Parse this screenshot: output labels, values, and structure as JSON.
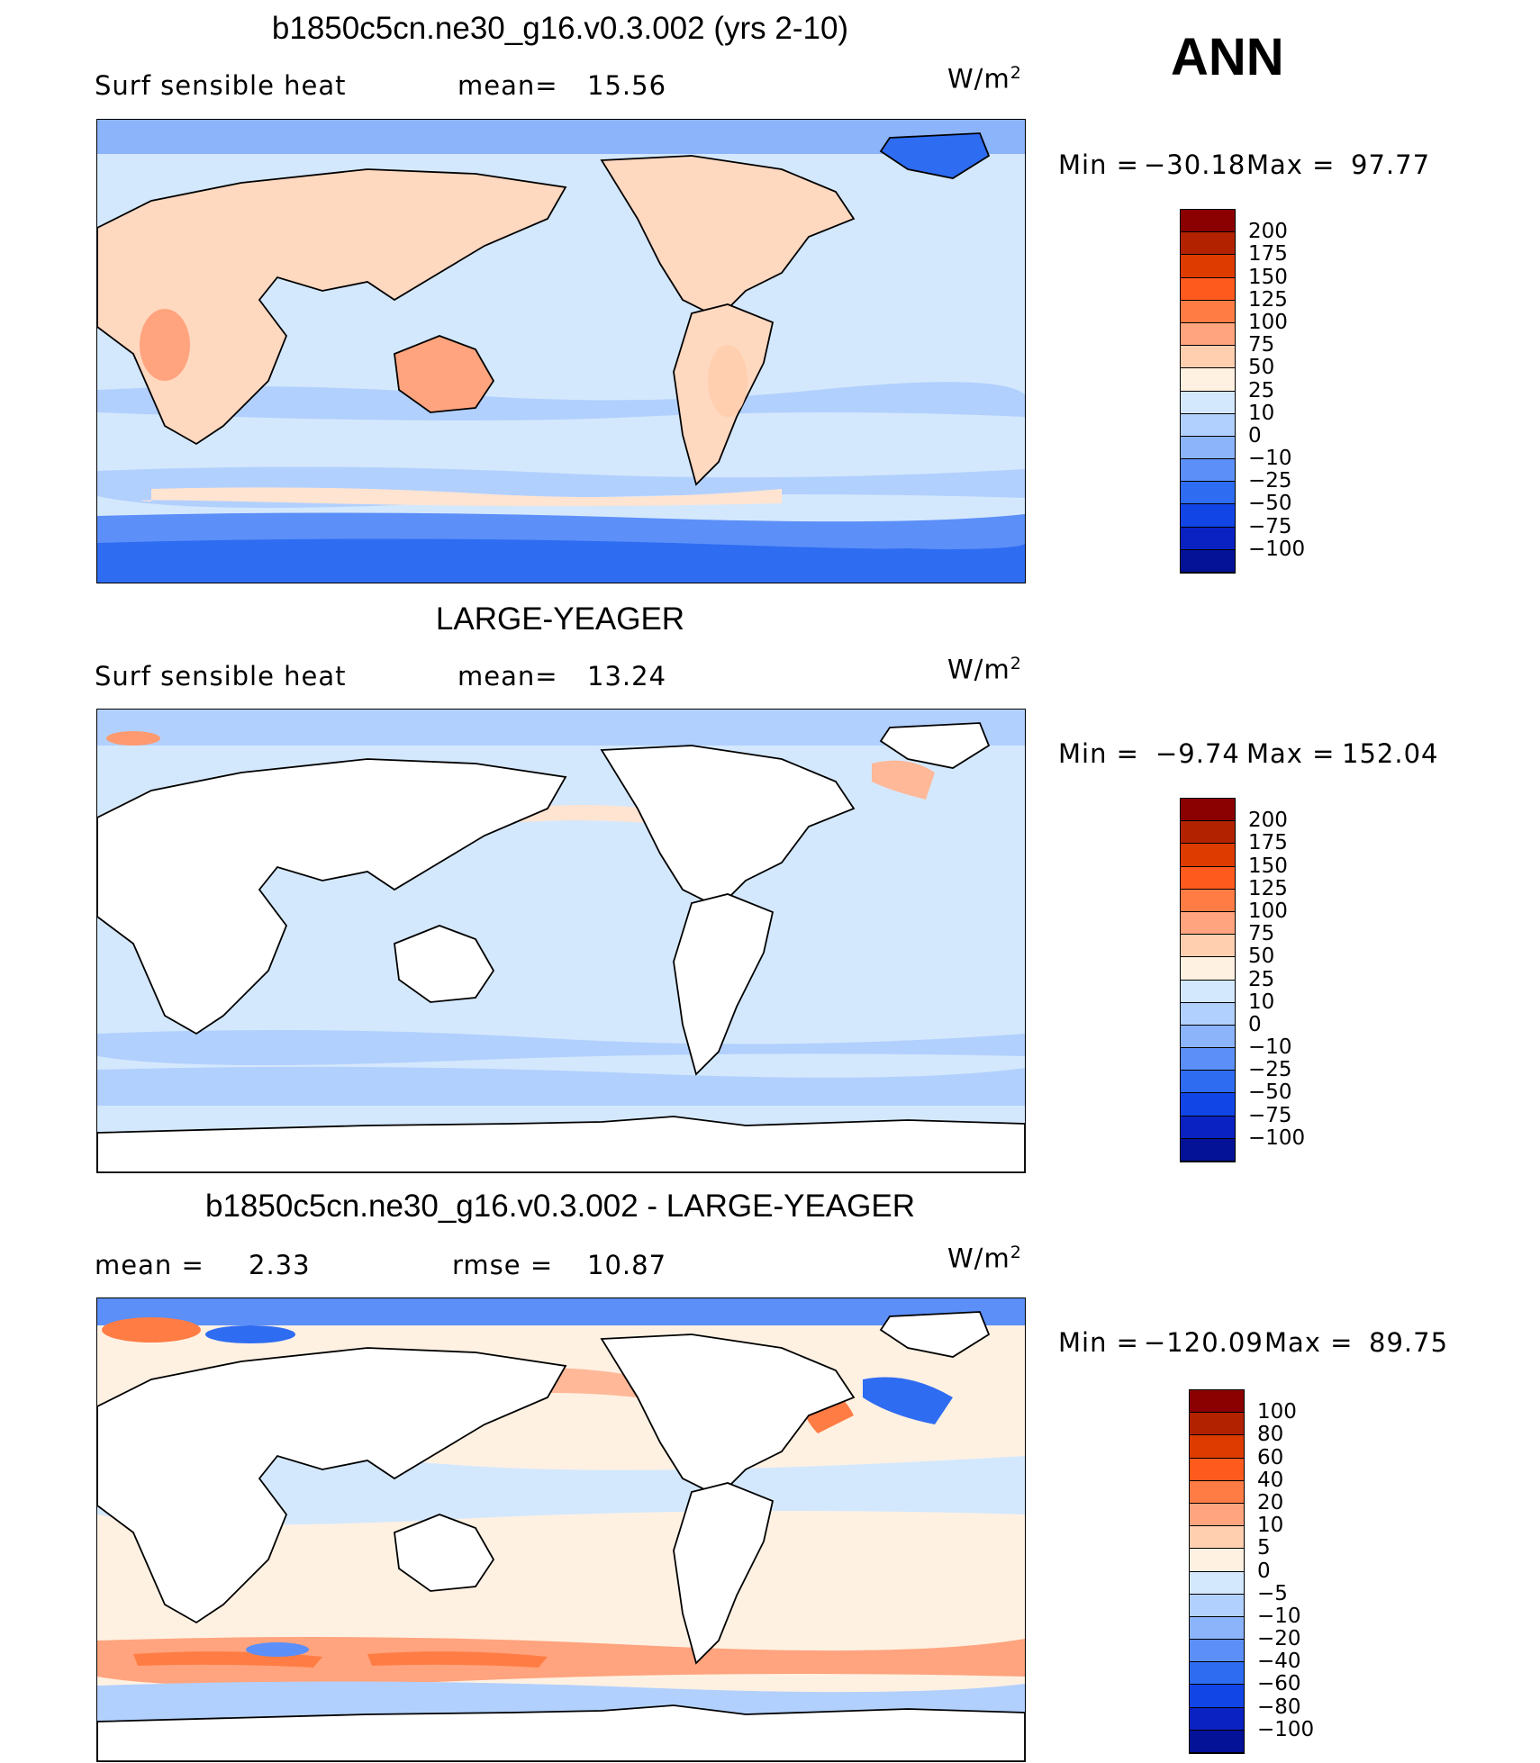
{
  "annual_label": "ANN",
  "units_base": "W/m",
  "units_exp": "2",
  "panels": [
    {
      "title": "b1850c5cn.ne30_g16.v0.3.002 (yrs 2-10)",
      "left_label": "Surf  sensible  heat",
      "stat_label": "mean=",
      "stat_value": "15.56",
      "minmax": {
        "min_label": "Min  =",
        "min": "−30.18",
        "max_label": "Max  =",
        "max": "97.77"
      },
      "ocean_only": false,
      "colorbar_levels": [
        "200",
        "175",
        "150",
        "125",
        "100",
        "75",
        "50",
        "25",
        "10",
        "0",
        "−10",
        "−25",
        "−50",
        "−75",
        "−100"
      ],
      "colorbar_colors": [
        "#8b0000",
        "#b22200",
        "#dd3b00",
        "#ff5a1e",
        "#ff7d45",
        "#ffa47e",
        "#ffcfb0",
        "#fff1e2",
        "#d4e8fd",
        "#b2d0fd",
        "#8bb4fb",
        "#5c8ff8",
        "#2e6cf2",
        "#1245e6",
        "#0a22c2",
        "#031296"
      ]
    },
    {
      "title": "LARGE-YEAGER",
      "left_label": "Surf  sensible  heat",
      "stat_label": "mean=",
      "stat_value": "13.24",
      "minmax": {
        "min_label": "Min  =",
        "min": "−9.74",
        "max_label": "Max  =",
        "max": "152.04"
      },
      "ocean_only": true,
      "colorbar_levels": [
        "200",
        "175",
        "150",
        "125",
        "100",
        "75",
        "50",
        "25",
        "10",
        "0",
        "−10",
        "−25",
        "−50",
        "−75",
        "−100"
      ],
      "colorbar_colors": [
        "#8b0000",
        "#b22200",
        "#dd3b00",
        "#ff5a1e",
        "#ff7d45",
        "#ffa47e",
        "#ffcfb0",
        "#fff1e2",
        "#d4e8fd",
        "#b2d0fd",
        "#8bb4fb",
        "#5c8ff8",
        "#2e6cf2",
        "#1245e6",
        "#0a22c2",
        "#031296"
      ]
    },
    {
      "title": "b1850c5cn.ne30_g16.v0.3.002 - LARGE-YEAGER",
      "mean_label": "mean  =",
      "mean_value": "2.33",
      "rmse_label": "rmse  =",
      "rmse_value": "10.87",
      "minmax": {
        "min_label": "Min  =",
        "min": "−120.09",
        "max_label": "Max  =",
        "max": "89.75"
      },
      "ocean_only": true,
      "colorbar_levels": [
        "100",
        "80",
        "60",
        "40",
        "20",
        "10",
        "5",
        "0",
        "−5",
        "−10",
        "−20",
        "−40",
        "−60",
        "−80",
        "−100"
      ],
      "colorbar_colors": [
        "#8b0000",
        "#b22200",
        "#dd3b00",
        "#ff5a1e",
        "#ff7d45",
        "#ffa47e",
        "#ffcfb0",
        "#fff1e2",
        "#d4e8fd",
        "#b2d0fd",
        "#8bb4fb",
        "#5c8ff8",
        "#2e6cf2",
        "#1245e6",
        "#0a22c2",
        "#031296"
      ]
    }
  ]
}
